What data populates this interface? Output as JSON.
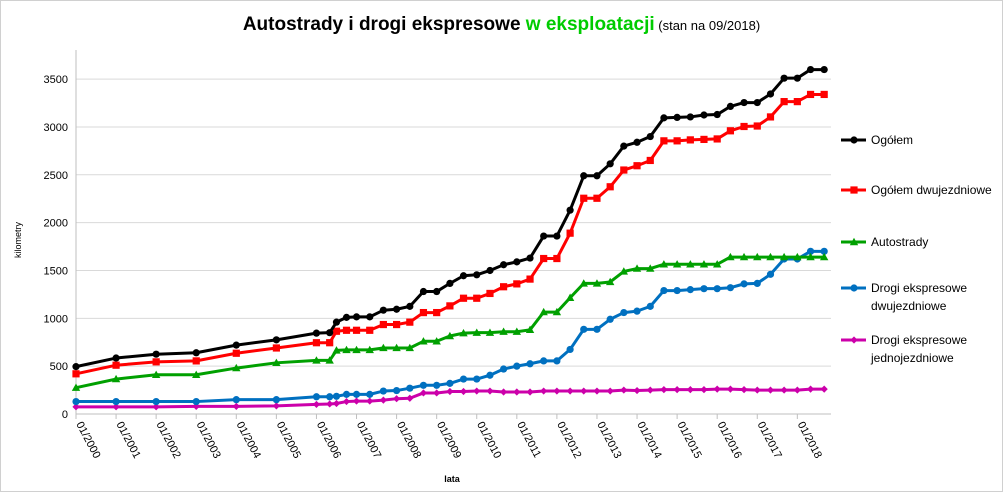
{
  "chart_data": {
    "type": "line",
    "title_prefix": "Autostrady i drogi ekspresowe ",
    "title_accent": "w eksploatacji",
    "title_suffix": " (stan na 09/2018)",
    "xlabel": "lata",
    "ylabel": "kilometry",
    "ylim": [
      0,
      3700
    ],
    "yticks": [
      0,
      500,
      1000,
      1500,
      2000,
      2500,
      3000,
      3500
    ],
    "xlim": [
      2000.0,
      2018.84
    ],
    "xticks": [
      {
        "label": "01/2000",
        "value": 2000
      },
      {
        "label": "01/2001",
        "value": 2001
      },
      {
        "label": "01/2002",
        "value": 2002
      },
      {
        "label": "01/2003",
        "value": 2003
      },
      {
        "label": "01/2004",
        "value": 2004
      },
      {
        "label": "01/2005",
        "value": 2005
      },
      {
        "label": "01/2006",
        "value": 2006
      },
      {
        "label": "01/2007",
        "value": 2007
      },
      {
        "label": "01/2008",
        "value": 2008
      },
      {
        "label": "01/2009",
        "value": 2009
      },
      {
        "label": "01/2010",
        "value": 2010
      },
      {
        "label": "01/2011",
        "value": 2011
      },
      {
        "label": "01/2012",
        "value": 2012
      },
      {
        "label": "01/2013",
        "value": 2013
      },
      {
        "label": "01/2014",
        "value": 2014
      },
      {
        "label": "01/2015",
        "value": 2015
      },
      {
        "label": "01/2016",
        "value": 2016
      },
      {
        "label": "01/2017",
        "value": 2017
      },
      {
        "label": "01/2018",
        "value": 2018
      }
    ],
    "grid": "horizontal",
    "legend_position": "right",
    "x": [
      2000.0,
      2001.0,
      2002.0,
      2003.0,
      2004.0,
      2005.0,
      2006.0,
      2006.33,
      2006.5,
      2006.75,
      2007.0,
      2007.33,
      2007.67,
      2008.0,
      2008.33,
      2008.67,
      2009.0,
      2009.33,
      2009.67,
      2010.0,
      2010.33,
      2010.67,
      2011.0,
      2011.33,
      2011.67,
      2012.0,
      2012.33,
      2012.67,
      2013.0,
      2013.33,
      2013.67,
      2014.0,
      2014.33,
      2014.67,
      2015.0,
      2015.33,
      2015.67,
      2016.0,
      2016.33,
      2016.67,
      2017.0,
      2017.33,
      2017.67,
      2018.0,
      2018.33,
      2018.67
    ],
    "series": [
      {
        "name": "Ogółem",
        "color": "#000000",
        "marker": "circle",
        "values": [
          495,
          585,
          625,
          640,
          720,
          775,
          845,
          850,
          960,
          1010,
          1015,
          1015,
          1085,
          1095,
          1125,
          1280,
          1280,
          1365,
          1445,
          1455,
          1500,
          1560,
          1590,
          1630,
          1860,
          1860,
          2130,
          2490,
          2490,
          2615,
          2800,
          2840,
          2900,
          3095,
          3100,
          3105,
          3125,
          3130,
          3215,
          3255,
          3255,
          3345,
          3510,
          3510,
          3600,
          3600
        ]
      },
      {
        "name": "Ogółem dwujezdniowe",
        "color": "#ff0000",
        "marker": "square",
        "values": [
          420,
          510,
          545,
          555,
          635,
          690,
          745,
          745,
          865,
          875,
          875,
          875,
          935,
          935,
          960,
          1060,
          1060,
          1130,
          1210,
          1210,
          1260,
          1330,
          1360,
          1410,
          1625,
          1625,
          1890,
          2255,
          2255,
          2375,
          2550,
          2595,
          2650,
          2855,
          2855,
          2865,
          2870,
          2875,
          2960,
          3005,
          3010,
          3105,
          3265,
          3265,
          3340,
          3340
        ]
      },
      {
        "name": "Autostrady",
        "color": "#00a000",
        "marker": "triangle",
        "values": [
          275,
          365,
          410,
          410,
          480,
          535,
          560,
          560,
          665,
          670,
          670,
          670,
          690,
          690,
          690,
          760,
          760,
          815,
          845,
          850,
          850,
          860,
          860,
          880,
          1065,
          1065,
          1215,
          1365,
          1365,
          1380,
          1490,
          1520,
          1520,
          1565,
          1565,
          1565,
          1565,
          1565,
          1640,
          1640,
          1640,
          1640,
          1640,
          1640,
          1640,
          1640
        ]
      },
      {
        "name": "Drogi ekspresowe dwujezdniowe",
        "name_lines": [
          "Drogi ekspresowe",
          "dwujezdniowe"
        ],
        "color": "#0070c0",
        "marker": "circle",
        "values": [
          130,
          130,
          130,
          130,
          150,
          150,
          180,
          180,
          185,
          205,
          205,
          205,
          240,
          245,
          270,
          300,
          300,
          320,
          365,
          365,
          405,
          470,
          500,
          525,
          555,
          555,
          675,
          885,
          885,
          990,
          1060,
          1075,
          1125,
          1290,
          1290,
          1300,
          1310,
          1310,
          1320,
          1360,
          1365,
          1460,
          1620,
          1620,
          1700,
          1700
        ]
      },
      {
        "name": "Drogi ekspresowe jednojezdniowe",
        "name_lines": [
          "Drogi ekspresowe",
          "jednojezdniowe"
        ],
        "color": "#cc00aa",
        "marker": "diamond",
        "values": [
          75,
          75,
          75,
          80,
          80,
          85,
          100,
          105,
          110,
          130,
          135,
          135,
          145,
          160,
          165,
          220,
          220,
          235,
          235,
          240,
          240,
          230,
          230,
          230,
          240,
          240,
          240,
          240,
          240,
          240,
          250,
          245,
          250,
          255,
          255,
          255,
          255,
          260,
          260,
          255,
          250,
          250,
          250,
          250,
          260,
          260
        ]
      }
    ]
  }
}
